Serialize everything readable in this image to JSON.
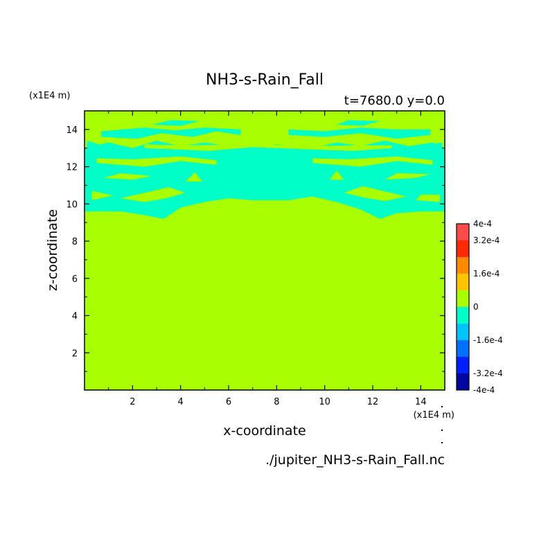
{
  "chart_data": {
    "type": "heatmap",
    "title": "NH3-s-Rain_Fall",
    "subtitle": "t=7680.0 y=0.0",
    "xlabel": "x-coordinate",
    "ylabel": "z-coordinate",
    "x_unit": "(x1E4 m)",
    "y_unit": "(x1E4 m)",
    "source_file": "./jupiter_NH3-s-Rain_Fall.nc",
    "xlim": [
      0.0,
      15.0
    ],
    "ylim": [
      0.0,
      15.0
    ],
    "x_ticks": [
      "2",
      "4",
      "6",
      "8",
      "10",
      "12",
      "14"
    ],
    "y_ticks": [
      "2",
      "4",
      "6",
      "8",
      "10",
      "12",
      "14"
    ],
    "field_description": "Background value 0 over the domain; a band of small negative values (-8e-5 to 0) between z = 9.5 and 14.5 (x1E4 m), densest around z = 10.5 to 12.5 near the center x = 4 to 11.",
    "colorbar": {
      "min": -0.0004,
      "max": 0.0004,
      "tick_labels": [
        "4e-4",
        "3.2e-4",
        "1.6e-4",
        "0",
        "-1.6e-4",
        "-3.2e-4",
        "-4e-4"
      ],
      "tick_values": [
        0.0004,
        0.00032,
        0.00016,
        0,
        -0.00016,
        -0.00032,
        -0.0004
      ],
      "levels": [
        {
          "from": 0.00032,
          "to": 0.0004,
          "color": "#ff4a4a"
        },
        {
          "from": 0.00024,
          "to": 0.00032,
          "color": "#ff2a00"
        },
        {
          "from": 0.00016,
          "to": 0.00024,
          "color": "#ff8a00"
        },
        {
          "from": 8e-05,
          "to": 0.00016,
          "color": "#ffc400"
        },
        {
          "from": 0,
          "to": 8e-05,
          "color": "#a8ff00"
        },
        {
          "from": -8e-05,
          "to": 0,
          "color": "#00ffc8"
        },
        {
          "from": -0.00016,
          "to": -8e-05,
          "color": "#00c4ff"
        },
        {
          "from": -0.00024,
          "to": -0.00016,
          "color": "#0070ff"
        },
        {
          "from": -0.00032,
          "to": -0.00024,
          "color": "#0020ff"
        },
        {
          "from": -0.0004,
          "to": -0.00032,
          "color": "#0008a0"
        }
      ]
    },
    "background_value_color": "#a8ff00",
    "negative_band_color": "#00ffc8"
  }
}
